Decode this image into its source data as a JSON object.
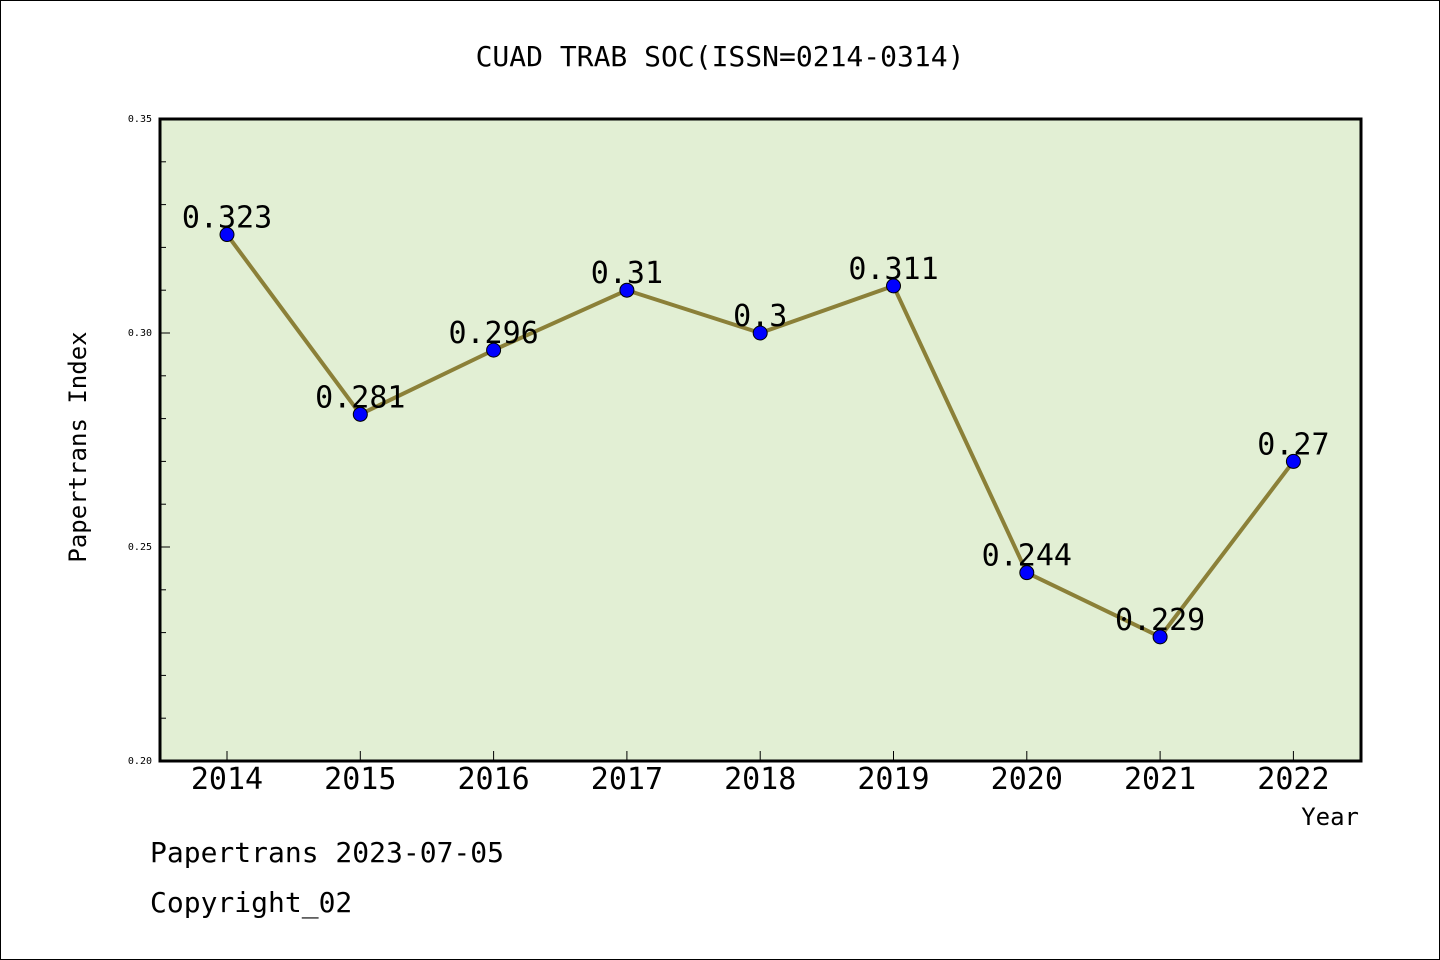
{
  "chart_data": {
    "type": "line",
    "title": "CUAD TRAB SOC(ISSN=0214-0314)",
    "xlabel": "Year",
    "ylabel": "Papertrans Index",
    "categories": [
      "2014",
      "2015",
      "2016",
      "2017",
      "2018",
      "2019",
      "2020",
      "2021",
      "2022"
    ],
    "values": [
      0.323,
      0.281,
      0.296,
      0.31,
      0.3,
      0.311,
      0.244,
      0.229,
      0.27
    ],
    "data_labels": [
      "0.323",
      "0.281",
      "0.296",
      "0.31",
      "0.3",
      "0.311",
      "0.244",
      "0.229",
      "0.27"
    ],
    "ylim": [
      0.2,
      0.35
    ],
    "yticks": [
      0.2,
      0.25,
      0.3,
      0.35
    ],
    "ytick_labels": [
      "0.20",
      "0.25",
      "0.30",
      "0.35"
    ],
    "grid": false,
    "legend": "none",
    "colors": {
      "plot_background": "#e2efd4",
      "line": "#8b8038",
      "marker": "#0000ff"
    }
  },
  "footer": {
    "line1": "Papertrans 2023-07-05",
    "line2": "Copyright_02"
  }
}
